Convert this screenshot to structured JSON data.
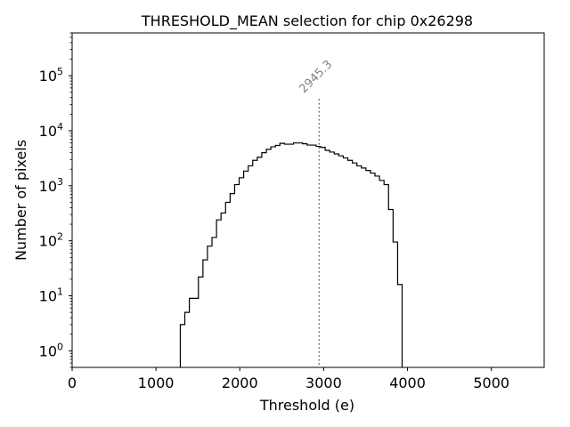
{
  "chart_data": {
    "type": "histogram",
    "title": "THRESHOLD_MEAN selection for chip 0x26298",
    "xlabel": "Threshold (e)",
    "ylabel": "Number of pixels",
    "xlim": [
      0,
      5630
    ],
    "ylim": [
      0.5,
      600000
    ],
    "yscale": "log",
    "grid": false,
    "xticks": [
      {
        "value": 0,
        "label": "0"
      },
      {
        "value": 1000,
        "label": "1000"
      },
      {
        "value": 2000,
        "label": "2000"
      },
      {
        "value": 3000,
        "label": "3000"
      },
      {
        "value": 4000,
        "label": "4000"
      },
      {
        "value": 5000,
        "label": "5000"
      }
    ],
    "yticks": [
      {
        "value": 1,
        "base": "10",
        "exp": "0"
      },
      {
        "value": 10,
        "base": "10",
        "exp": "1"
      },
      {
        "value": 100,
        "base": "10",
        "exp": "2"
      },
      {
        "value": 1000,
        "base": "10",
        "exp": "3"
      },
      {
        "value": 10000,
        "base": "10",
        "exp": "4"
      },
      {
        "value": 100000,
        "base": "10",
        "exp": "5"
      }
    ],
    "bin_width": 54,
    "bin_start": 1290,
    "counts": [
      3,
      5,
      9,
      9,
      22,
      45,
      80,
      115,
      240,
      320,
      500,
      720,
      1050,
      1400,
      1850,
      2300,
      2900,
      3300,
      4000,
      4600,
      5100,
      5400,
      5900,
      5700,
      5700,
      6000,
      6000,
      5800,
      5500,
      5500,
      5200,
      5000,
      4400,
      4100,
      3800,
      3500,
      3200,
      2900,
      2600,
      2300,
      2100,
      1900,
      1700,
      1500,
      1250,
      1050,
      370,
      95,
      16
    ],
    "annotation": {
      "x": 2945.3,
      "label": "2945.3",
      "color": "#808080",
      "line_top": 38000
    }
  }
}
